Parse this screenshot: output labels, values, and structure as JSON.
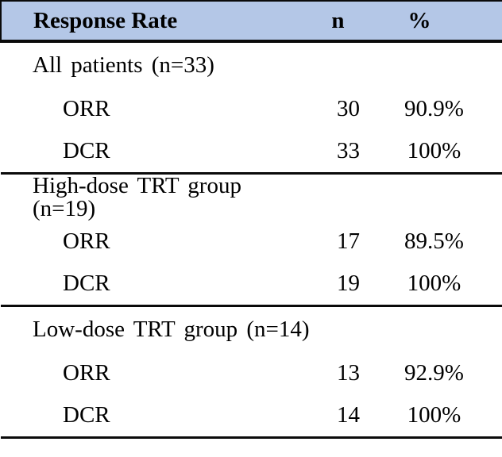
{
  "colors": {
    "header_bg": "#b4c7e7",
    "rule": "#0a0a0a",
    "text": "#000000"
  },
  "table": {
    "columns": [
      "Response Rate",
      "n",
      "%"
    ],
    "sections": [
      {
        "label": "All patients (n=33)",
        "rows": [
          {
            "measure": "ORR",
            "n": "30",
            "pct": "90.9%"
          },
          {
            "measure": "DCR",
            "n": "33",
            "pct": "100%"
          }
        ]
      },
      {
        "label": "High-dose TRT group (n=19)",
        "rows": [
          {
            "measure": "ORR",
            "n": "17",
            "pct": "89.5%"
          },
          {
            "measure": "DCR",
            "n": "19",
            "pct": "100%"
          }
        ]
      },
      {
        "label": "Low-dose TRT group (n=14)",
        "rows": [
          {
            "measure": "ORR",
            "n": "13",
            "pct": "92.9%"
          },
          {
            "measure": "DCR",
            "n": "14",
            "pct": "100%"
          }
        ]
      }
    ]
  },
  "chart_data": {
    "type": "table",
    "title": "Response Rate",
    "columns": [
      "Response Rate",
      "n",
      "%"
    ],
    "rows": [
      [
        "All patients (n=33)",
        "",
        ""
      ],
      [
        "ORR",
        30,
        "90.9%"
      ],
      [
        "DCR",
        33,
        "100%"
      ],
      [
        "High-dose TRT group (n=19)",
        "",
        ""
      ],
      [
        "ORR",
        17,
        "89.5%"
      ],
      [
        "DCR",
        19,
        "100%"
      ],
      [
        "Low-dose TRT group (n=14)",
        "",
        ""
      ],
      [
        "ORR",
        13,
        "92.9%"
      ],
      [
        "DCR",
        14,
        "100%"
      ]
    ]
  }
}
